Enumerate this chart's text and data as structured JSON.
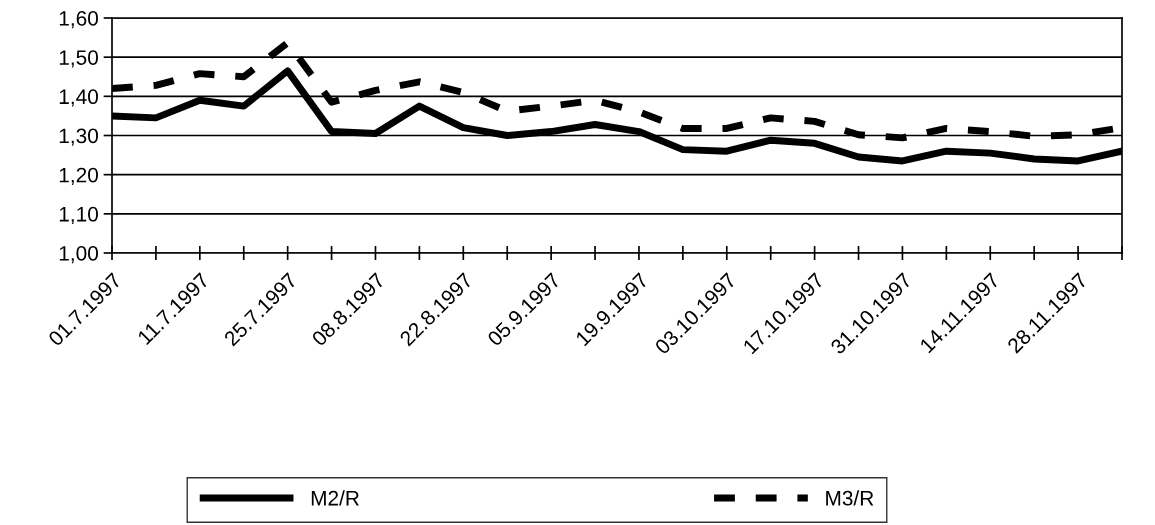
{
  "chart_data": {
    "type": "line",
    "categories": [
      "01.7.1997",
      null,
      "11.7.1997",
      null,
      "25.7.1997",
      null,
      "08.8.1997",
      null,
      "22.8.1997",
      null,
      "05.9.1997",
      null,
      "19.9.1997",
      null,
      "03.10.1997",
      null,
      "17.10.1997",
      null,
      "31.10.1997",
      null,
      "14.11.1997",
      null,
      "28.11.1997",
      null
    ],
    "series": [
      {
        "name": "M2/R",
        "color": "#000000",
        "line_style": "solid",
        "values": [
          1.35,
          1.345,
          1.39,
          1.375,
          1.465,
          1.31,
          1.305,
          1.375,
          1.32,
          1.3,
          1.31,
          1.328,
          1.31,
          1.264,
          1.26,
          1.288,
          1.28,
          1.245,
          1.235,
          1.26,
          1.255,
          1.24,
          1.235,
          1.26
        ]
      },
      {
        "name": "M3/R",
        "color": "#000000",
        "line_style": "dashed",
        "values": [
          1.42,
          1.428,
          1.458,
          1.45,
          1.537,
          1.385,
          1.415,
          1.437,
          1.41,
          1.362,
          1.375,
          1.39,
          1.36,
          1.318,
          1.318,
          1.345,
          1.336,
          1.302,
          1.294,
          1.318,
          1.31,
          1.298,
          1.302,
          1.32
        ]
      }
    ],
    "ylim": [
      1.0,
      1.6
    ],
    "yticks": [
      {
        "value": 1.0,
        "label": "1,00"
      },
      {
        "value": 1.1,
        "label": "1,10"
      },
      {
        "value": 1.2,
        "label": "1,20"
      },
      {
        "value": 1.3,
        "label": "1,30"
      },
      {
        "value": 1.4,
        "label": "1,40"
      },
      {
        "value": 1.5,
        "label": "1,50"
      },
      {
        "value": 1.6,
        "label": "1,60"
      }
    ],
    "grid": "y",
    "legend": "bottom",
    "marker": "none"
  }
}
